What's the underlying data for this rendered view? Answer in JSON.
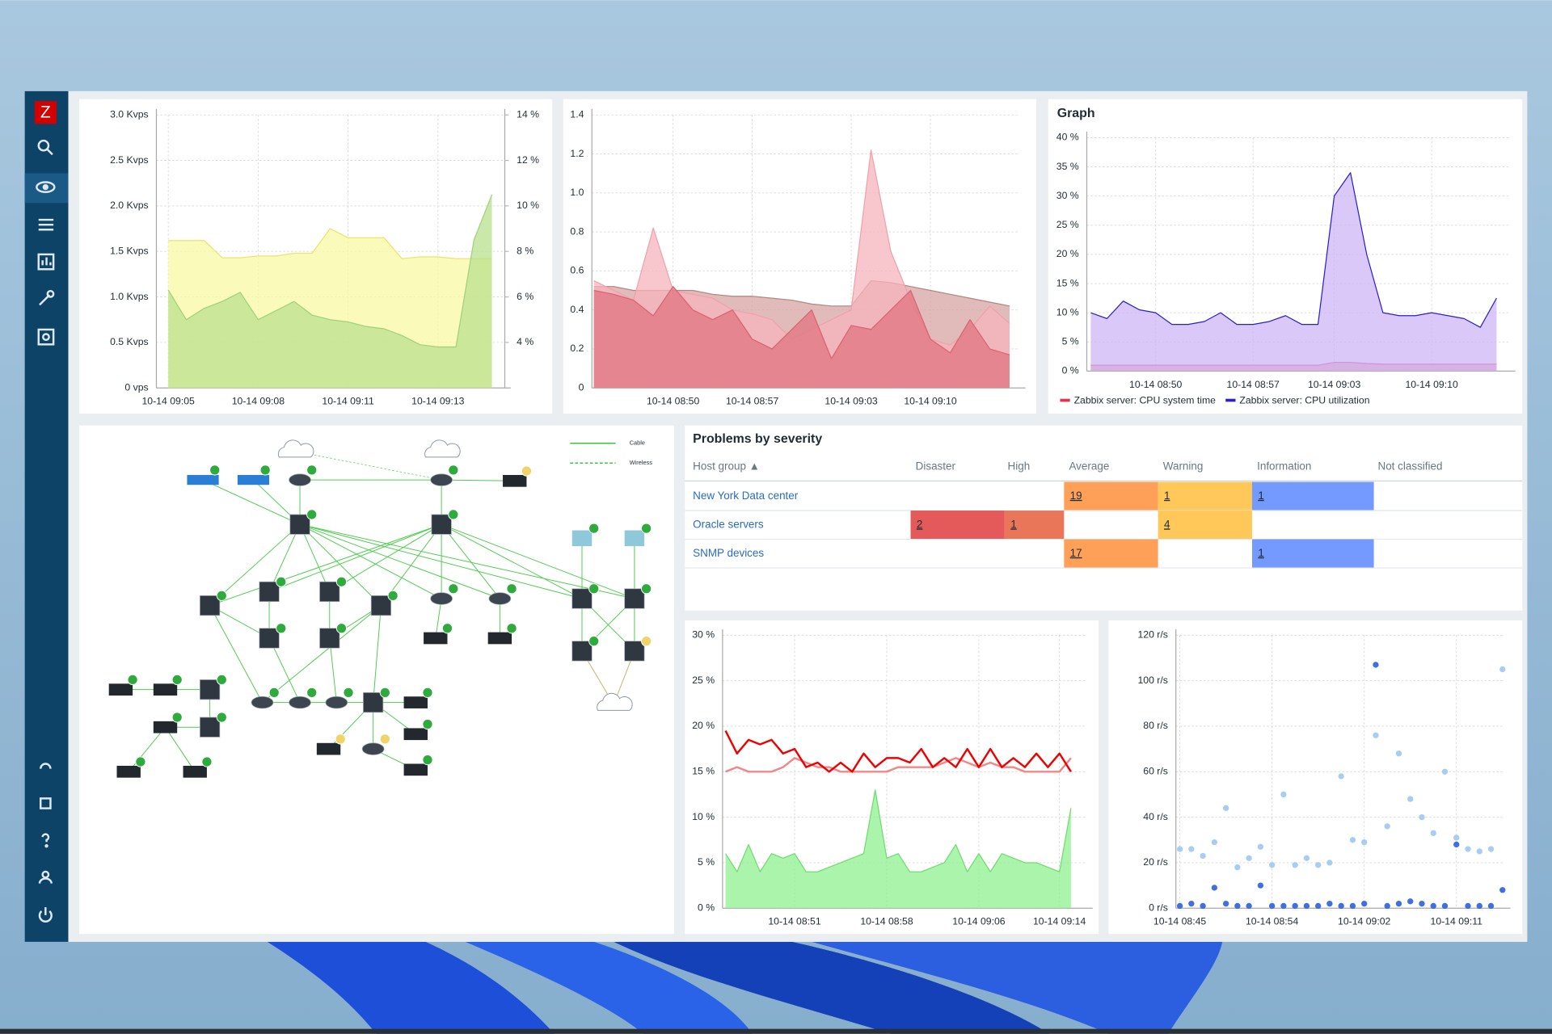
{
  "sidebar": {
    "logo": "Z"
  },
  "chart_data": [
    {
      "type": "area",
      "grid": true,
      "categories": [
        "10-14 09:05",
        null,
        null,
        null,
        null,
        "10-14 09:08",
        null,
        null,
        null,
        null,
        "10-14 09:11",
        null,
        null,
        null,
        null,
        "10-14 09:13",
        null,
        null,
        null
      ],
      "ylim": [
        0,
        3000
      ],
      "yticks": [
        {
          "value": 0,
          "label": "0 vps"
        },
        {
          "value": 500,
          "label": "0.5 Kvps"
        },
        {
          "value": 1000,
          "label": "1.0 Kvps"
        },
        {
          "value": 1500,
          "label": "1.5 Kvps"
        },
        {
          "value": 2000,
          "label": "2.0 Kvps"
        },
        {
          "value": 2500,
          "label": "2.5 Kvps"
        },
        {
          "value": 3000,
          "label": "3.0 Kvps"
        }
      ],
      "y2lim": [
        2,
        14
      ],
      "y2ticks": [
        {
          "value": 4,
          "label": "4 %"
        },
        {
          "value": 6,
          "label": "6 %"
        },
        {
          "value": 8,
          "label": "8 %"
        },
        {
          "value": 10,
          "label": "10 %"
        },
        {
          "value": 12,
          "label": "12 %"
        },
        {
          "value": 14,
          "label": "14 %"
        }
      ],
      "series": [
        {
          "color": "#e6e66a",
          "fill": "#f8f8a4",
          "values": [
            1620,
            1620,
            1620,
            1430,
            1430,
            1450,
            1450,
            1480,
            1480,
            1750,
            1650,
            1650,
            1650,
            1420,
            1440,
            1440,
            1420,
            1420,
            1420
          ]
        },
        {
          "color": "#9fd27a",
          "fill": "#b9e08f",
          "axis": "y2",
          "values": [
            6.3,
            5.0,
            5.5,
            5.8,
            6.2,
            5.0,
            5.4,
            5.8,
            5.2,
            5.0,
            4.9,
            4.7,
            4.6,
            4.3,
            3.9,
            3.8,
            3.8,
            8.5,
            10.5
          ]
        }
      ]
    },
    {
      "type": "area",
      "grid": true,
      "categories": [
        null,
        null,
        null,
        null,
        "10-14 08:50",
        null,
        null,
        null,
        "10-14 08:57",
        null,
        null,
        null,
        null,
        "10-14 09:03",
        null,
        null,
        null,
        "10-14 09:10",
        null,
        null,
        null,
        null
      ],
      "ylim": [
        0,
        1.4
      ],
      "yticks": [
        0,
        0.2,
        0.4,
        0.6,
        0.8,
        {
          "value": 1,
          "label": "1.0"
        },
        1.2,
        1.4
      ],
      "series": [
        {
          "color": "#b58482",
          "fill": "#d6a4a2",
          "values": [
            0.52,
            0.52,
            0.5,
            0.5,
            0.5,
            0.5,
            0.48,
            0.47,
            0.47,
            0.46,
            0.45,
            0.43,
            0.42,
            0.42,
            0.55,
            0.54,
            0.52,
            0.5,
            0.48,
            0.46,
            0.44,
            0.42
          ]
        },
        {
          "color": "#f0a0aa",
          "fill": "#f5b4bc",
          "values": [
            0.55,
            0.5,
            0.45,
            0.82,
            0.5,
            0.48,
            0.46,
            0.4,
            0.38,
            0.35,
            0.25,
            0.3,
            0.35,
            0.4,
            1.22,
            0.7,
            0.45,
            0.25,
            0.22,
            0.3,
            0.42,
            0.33
          ]
        },
        {
          "color": "#dc6272",
          "fill": "#e27482",
          "values": [
            0.5,
            0.48,
            0.45,
            0.37,
            0.52,
            0.4,
            0.35,
            0.4,
            0.25,
            0.2,
            0.3,
            0.4,
            0.15,
            0.32,
            0.3,
            0.4,
            0.5,
            0.25,
            0.18,
            0.35,
            0.2,
            0.17
          ]
        }
      ]
    },
    {
      "type": "area",
      "title": "Graph",
      "grid": true,
      "legend": "bottom",
      "categories": [
        null,
        null,
        null,
        null,
        "10-14 08:50",
        null,
        null,
        null,
        null,
        null,
        "10-14 08:57",
        null,
        null,
        null,
        null,
        "10-14 09:03",
        null,
        null,
        null,
        null,
        null,
        "10-14 09:10",
        null,
        null,
        null,
        null
      ],
      "ylim": [
        0,
        40
      ],
      "yticks": [
        {
          "value": 0,
          "label": "0 %"
        },
        {
          "value": 5,
          "label": "5 %"
        },
        {
          "value": 10,
          "label": "10 %"
        },
        {
          "value": 15,
          "label": "15 %"
        },
        {
          "value": 20,
          "label": "20 %"
        },
        {
          "value": 25,
          "label": "25 %"
        },
        {
          "value": 30,
          "label": "30 %"
        },
        {
          "value": 35,
          "label": "35 %"
        },
        {
          "value": 40,
          "label": "40 %"
        }
      ],
      "series": [
        {
          "name": "Zabbix server: CPU system time",
          "color": "#e8304a",
          "fill": "#f08aa0",
          "values": [
            1,
            1,
            1,
            1,
            1,
            1,
            1,
            1,
            1,
            1,
            1,
            1,
            1,
            1,
            1,
            1.5,
            1.5,
            1.3,
            1.2,
            1.2,
            1.2,
            1.2,
            1.2,
            1.2,
            1.2,
            1.2
          ]
        },
        {
          "name": "Zabbix server: CPU utilization",
          "color": "#2a20d0",
          "fill": "#cdb6f6",
          "values": [
            10,
            9,
            12,
            10.5,
            10,
            8,
            8,
            8.5,
            10,
            8,
            8,
            8.5,
            9.5,
            8,
            8,
            30,
            34,
            20,
            10,
            9.5,
            9.5,
            10,
            9.5,
            9,
            7.5,
            12.5
          ]
        }
      ]
    },
    {
      "type": "line",
      "grid": true,
      "categories": [
        null,
        null,
        null,
        null,
        null,
        null,
        "10-14 08:51",
        null,
        null,
        null,
        null,
        null,
        null,
        null,
        "10-14 08:58",
        null,
        null,
        null,
        null,
        null,
        null,
        null,
        "10-14 09:06",
        null,
        null,
        null,
        null,
        null,
        null,
        "10-14 09:14",
        null
      ],
      "ylim": [
        0,
        30
      ],
      "yticks": [
        {
          "value": 0,
          "label": "0 %"
        },
        {
          "value": 5,
          "label": "5 %"
        },
        {
          "value": 10,
          "label": "10 %"
        },
        {
          "value": 15,
          "label": "15 %"
        },
        {
          "value": 20,
          "label": "20 %"
        },
        {
          "value": 25,
          "label": "25 %"
        },
        {
          "value": 30,
          "label": "30 %"
        }
      ],
      "series": [
        {
          "type": "area",
          "color": "#6ddc6d",
          "fill": "#8ff08f",
          "values": [
            6,
            4,
            7,
            4,
            6,
            5.5,
            6,
            4,
            4,
            4.5,
            5,
            5.5,
            6,
            13,
            5.5,
            6,
            4,
            4,
            4.5,
            5,
            7,
            4,
            6,
            4,
            6,
            5.5,
            5,
            5,
            4.5,
            4,
            11
          ]
        },
        {
          "color": "#f08888",
          "values": [
            15,
            15.5,
            15,
            15,
            15,
            15.5,
            16.5,
            16,
            15.5,
            15.5,
            15,
            15,
            15,
            15,
            15,
            15.5,
            15.5,
            15.5,
            15.5,
            16,
            16.5,
            16,
            15.5,
            16,
            15.5,
            15.5,
            15,
            15,
            15,
            15,
            16.5
          ]
        },
        {
          "color": "#f00000",
          "values": [
            19.5,
            17,
            18.5,
            18,
            18.5,
            17,
            17.5,
            15.5,
            16,
            15,
            16,
            15,
            17,
            15.5,
            16.5,
            16.5,
            16,
            17.5,
            15.5,
            16.5,
            15.5,
            17.5,
            15.5,
            17.5,
            15.5,
            16.5,
            15.5,
            17,
            15.5,
            17,
            15
          ]
        }
      ]
    },
    {
      "type": "scatter",
      "grid": true,
      "categories": [
        "10-14 08:45",
        null,
        null,
        null,
        null,
        null,
        null,
        null,
        "10-14 08:54",
        null,
        null,
        null,
        null,
        null,
        null,
        null,
        "10-14 09:02",
        null,
        null,
        null,
        null,
        null,
        null,
        null,
        "10-14 09:11",
        null,
        null,
        null,
        null
      ],
      "ylim": [
        0,
        120
      ],
      "yticks": [
        {
          "value": 0,
          "label": "0 r/s"
        },
        {
          "value": 20,
          "label": "20 r/s"
        },
        {
          "value": 40,
          "label": "40 r/s"
        },
        {
          "value": 60,
          "label": "60 r/s"
        },
        {
          "value": 80,
          "label": "80 r/s"
        },
        {
          "value": 100,
          "label": "100 r/s"
        },
        {
          "value": 120,
          "label": "120 r/s"
        }
      ],
      "series": [
        {
          "color": "#a8cdf5",
          "values": [
            26,
            26,
            23,
            29,
            44,
            18,
            22,
            27,
            19,
            50,
            19,
            22,
            19,
            20,
            58,
            30,
            29,
            76,
            36,
            68,
            48,
            40,
            33,
            60,
            31,
            26,
            25,
            26,
            105
          ]
        },
        {
          "color": "#3f6fe0",
          "values": [
            1,
            2,
            1,
            9,
            2,
            1,
            1,
            10,
            1,
            1,
            1,
            1,
            1,
            2,
            1,
            1,
            2,
            107,
            1,
            2,
            3,
            2,
            1,
            1,
            28,
            1,
            1,
            1,
            8
          ]
        }
      ]
    }
  ],
  "map": {
    "legend": [
      "Cable",
      "Wireless"
    ]
  },
  "problems": {
    "title": "Problems by severity",
    "columns": [
      "Host group ▲",
      "Disaster",
      "High",
      "Average",
      "Warning",
      "Information",
      "Not classified"
    ],
    "colors": [
      "#e45959",
      "#e97659",
      "#ffa059",
      "#ffc859",
      "#7499ff",
      "#97aab3"
    ],
    "rows": [
      {
        "host": "New York Data center",
        "cells": [
          null,
          null,
          19,
          1,
          1,
          null
        ]
      },
      {
        "host": "Oracle servers",
        "cells": [
          2,
          1,
          null,
          4,
          null,
          null
        ]
      },
      {
        "host": "SNMP devices",
        "cells": [
          null,
          null,
          17,
          null,
          1,
          null
        ]
      }
    ]
  }
}
